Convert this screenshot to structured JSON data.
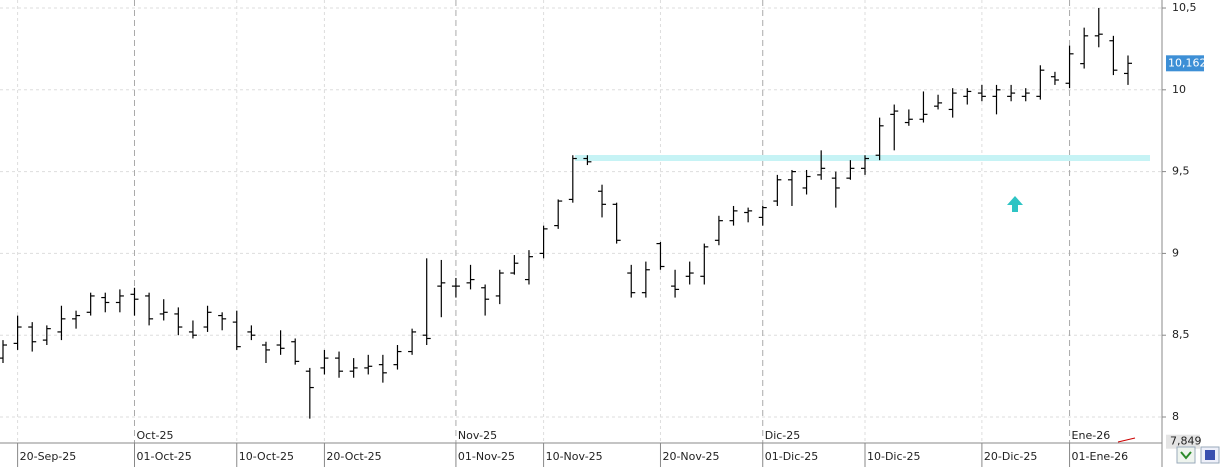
{
  "chart_data": {
    "type": "ohlc",
    "categories": [
      null,
      "20-Sep-25",
      null,
      null,
      null,
      null,
      null,
      null,
      null,
      "01-Oct-25",
      null,
      null,
      null,
      null,
      null,
      null,
      "10-Oct-25",
      null,
      null,
      null,
      null,
      null,
      "20-Oct-25",
      null,
      null,
      null,
      null,
      null,
      null,
      null,
      null,
      "01-Nov-25",
      null,
      null,
      null,
      null,
      null,
      "10-Nov-25",
      null,
      null,
      null,
      null,
      null,
      null,
      null,
      "20-Nov-25",
      null,
      null,
      null,
      null,
      null,
      null,
      "01-Dic-25",
      null,
      null,
      null,
      null,
      null,
      null,
      "10-Dic-25",
      null,
      null,
      null,
      null,
      null,
      null,
      null,
      "20-Dic-25",
      null,
      null,
      null,
      null,
      null,
      "01-Ene-26",
      null,
      null,
      null,
      null
    ],
    "month_categories": [
      null,
      null,
      null,
      null,
      null,
      null,
      null,
      null,
      null,
      "Oct-25",
      null,
      null,
      null,
      null,
      null,
      null,
      null,
      null,
      null,
      null,
      null,
      null,
      null,
      null,
      null,
      null,
      null,
      null,
      null,
      null,
      null,
      "Nov-25",
      null,
      null,
      null,
      null,
      null,
      null,
      null,
      null,
      null,
      null,
      null,
      null,
      null,
      null,
      null,
      null,
      null,
      null,
      null,
      null,
      "Dic-25",
      null,
      null,
      null,
      null,
      null,
      null,
      null,
      null,
      null,
      null,
      null,
      null,
      null,
      null,
      null,
      null,
      null,
      null,
      null,
      null,
      "Ene-26",
      null,
      null,
      null,
      null
    ],
    "open": [
      8.36,
      8.45,
      8.55,
      8.47,
      8.52,
      8.6,
      8.64,
      8.73,
      8.7,
      8.75,
      8.74,
      8.63,
      8.63,
      8.52,
      8.55,
      8.62,
      8.58,
      8.52,
      8.44,
      8.44,
      8.46,
      8.28,
      8.3,
      8.36,
      8.28,
      8.3,
      8.32,
      8.32,
      8.4,
      8.5,
      8.8,
      8.8,
      8.82,
      8.79,
      8.74,
      8.88,
      8.84,
      9.0,
      9.17,
      9.33,
      9.58,
      9.38,
      9.3,
      8.88,
      8.76,
      9.06,
      8.8,
      8.86,
      8.86,
      9.08,
      9.2,
      9.25,
      9.22,
      9.32,
      9.45,
      9.4,
      9.48,
      9.46,
      9.46,
      9.52,
      9.6,
      9.85,
      9.8,
      9.82,
      9.9,
      9.88,
      9.96,
      9.98,
      9.96,
      9.96,
      9.96,
      9.96,
      10.08,
      10.04,
      10.16,
      10.33,
      10.3,
      10.1
    ],
    "high": [
      8.47,
      8.62,
      8.58,
      8.56,
      8.68,
      8.65,
      8.76,
      8.76,
      8.78,
      8.79,
      8.76,
      8.72,
      8.67,
      8.59,
      8.68,
      8.64,
      8.65,
      8.56,
      8.46,
      8.53,
      8.48,
      8.3,
      8.41,
      8.4,
      8.36,
      8.38,
      8.38,
      8.44,
      8.54,
      8.97,
      8.96,
      8.85,
      8.93,
      8.81,
      8.9,
      8.99,
      9.02,
      9.17,
      9.33,
      9.6,
      9.6,
      9.42,
      9.31,
      8.93,
      8.95,
      9.07,
      8.9,
      8.95,
      9.06,
      9.23,
      9.29,
      9.28,
      9.29,
      9.48,
      9.51,
      9.51,
      9.63,
      9.5,
      9.57,
      9.6,
      9.83,
      9.91,
      9.88,
      9.99,
      9.97,
      10.01,
      10.01,
      10.03,
      10.03,
      10.03,
      10.01,
      10.15,
      10.11,
      10.27,
      10.38,
      10.5,
      10.33,
      10.21
    ],
    "low": [
      8.33,
      8.41,
      8.4,
      8.44,
      8.47,
      8.54,
      8.62,
      8.64,
      8.64,
      8.62,
      8.56,
      8.59,
      8.5,
      8.48,
      8.52,
      8.53,
      8.41,
      8.47,
      8.33,
      8.38,
      8.32,
      7.99,
      8.26,
      8.24,
      8.24,
      8.26,
      8.21,
      8.29,
      8.38,
      8.44,
      8.61,
      8.73,
      8.78,
      8.62,
      8.69,
      8.87,
      8.81,
      8.97,
      9.15,
      9.31,
      9.54,
      9.22,
      9.06,
      8.73,
      8.73,
      8.9,
      8.73,
      8.81,
      8.81,
      9.05,
      9.17,
      9.19,
      9.17,
      9.29,
      9.29,
      9.36,
      9.45,
      9.28,
      9.45,
      9.48,
      9.57,
      9.63,
      9.78,
      9.8,
      9.88,
      9.83,
      9.91,
      9.93,
      9.85,
      9.93,
      9.93,
      9.94,
      10.03,
      10.01,
      10.13,
      10.26,
      10.09,
      10.03
    ],
    "close": [
      8.44,
      8.55,
      8.46,
      8.54,
      8.6,
      8.62,
      8.74,
      8.7,
      8.74,
      8.72,
      8.6,
      8.64,
      8.55,
      8.5,
      8.64,
      8.6,
      8.43,
      8.5,
      8.41,
      8.42,
      8.34,
      8.18,
      8.36,
      8.28,
      8.3,
      8.31,
      8.27,
      8.4,
      8.52,
      8.48,
      8.82,
      8.8,
      8.84,
      8.72,
      8.88,
      8.94,
      8.98,
      9.15,
      9.32,
      9.58,
      9.56,
      9.3,
      9.08,
      8.76,
      8.9,
      8.92,
      8.78,
      8.88,
      9.04,
      9.2,
      9.26,
      9.26,
      9.28,
      9.45,
      9.5,
      9.47,
      9.52,
      9.4,
      9.52,
      9.58,
      9.78,
      9.87,
      9.82,
      9.85,
      9.92,
      9.98,
      9.99,
      9.96,
      10.0,
      9.98,
      9.98,
      10.12,
      10.06,
      10.22,
      10.33,
      10.34,
      10.12,
      10.162
    ],
    "color": "#000000",
    "ylim": [
      7.849,
      10.549
    ],
    "yticks": [
      {
        "value": 10.5,
        "label": "10,5"
      },
      10,
      {
        "value": 9.5,
        "label": "9,5"
      },
      9,
      {
        "value": 8.5,
        "label": "8,5"
      },
      8
    ],
    "last_value": {
      "value": 10.162,
      "label": "10,162"
    },
    "ymin_label": "7,849",
    "grid": true
  }
}
